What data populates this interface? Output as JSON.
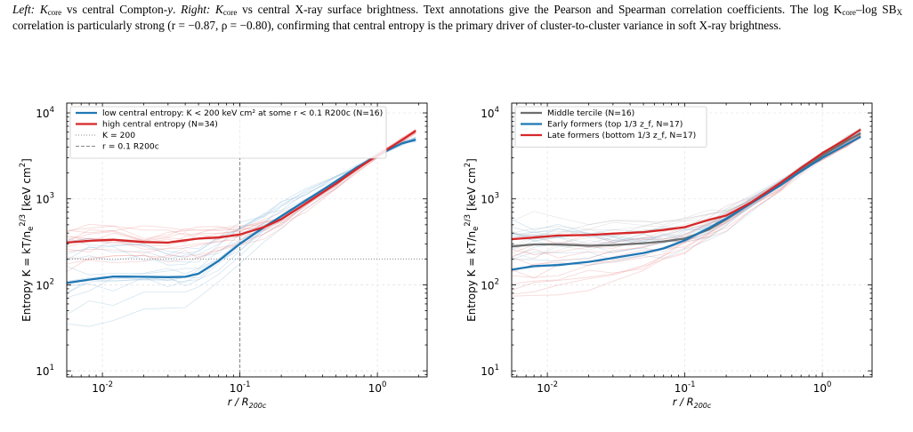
{
  "caption": {
    "line1_left": "Left:",
    "line1_a": " K",
    "line1_core1": "core",
    "line1_b": " vs central Compton-",
    "line1_y": "y",
    "line1_c": ". ",
    "line1_right": "Right:",
    "line1_d": " K",
    "line1_core2": "core",
    "line1_e": " vs central X-ray surface brightness. Text annotations give the Pearson and Spearman correlation coefficients. The",
    "line2_a": "log K",
    "line2_core": "core",
    "line2_b": "–log SB",
    "line2_x": "X",
    "line2_c": " correlation is particularly strong (r = −0.87, ρ = −0.80), confirming that central entropy is the primary driver of cluster-to-cluster variance",
    "line3": "in soft X-ray brightness."
  },
  "chart_data": [
    {
      "type": "line",
      "xscale": "log",
      "yscale": "log",
      "xlim": [
        0.0055,
        2.3
      ],
      "ylim": [
        8.5,
        13000
      ],
      "xlabel": "r / R200c",
      "ylabel": "Entropy K = kT/n_e^(2/3) [keV cm^2]",
      "xticks": [
        "10^-2",
        "10^-1",
        "10^0"
      ],
      "yticks": [
        "10^1",
        "10^2",
        "10^3",
        "10^4"
      ],
      "grid": true,
      "legend_position": "upper-left",
      "legend": [
        {
          "label": "low central entropy: K < 200 keV cm² at some r < 0.1 R200c (N=16)",
          "color": "#1f77b4",
          "style": "solid"
        },
        {
          "label": "high central entropy (N=34)",
          "color": "#d62728",
          "style": "solid"
        },
        {
          "label": "K = 200",
          "color": "#888888",
          "style": "dotted"
        },
        {
          "label": "r = 0.1 R200c",
          "color": "#888888",
          "style": "dashed"
        }
      ],
      "reference_lines": {
        "hline_y": 200,
        "vline_x": 0.1
      },
      "series": [
        {
          "name": "low central entropy: K < 200 keV cm² at some r < 0.1 R200c (N=16)",
          "color": "#1f77b4",
          "x": [
            0.0055,
            0.008,
            0.012,
            0.02,
            0.03,
            0.04,
            0.05,
            0.07,
            0.1,
            0.15,
            0.2,
            0.3,
            0.5,
            0.7,
            1.0,
            1.5,
            1.9
          ],
          "y": [
            105,
            115,
            125,
            124,
            123,
            124,
            135,
            190,
            300,
            470,
            630,
            950,
            1600,
            2300,
            3200,
            4400,
            4900
          ]
        },
        {
          "name": "high central entropy (N=34)",
          "color": "#d62728",
          "x": [
            0.0055,
            0.008,
            0.012,
            0.02,
            0.03,
            0.04,
            0.05,
            0.07,
            0.1,
            0.15,
            0.2,
            0.3,
            0.5,
            0.7,
            1.0,
            1.5,
            1.9
          ],
          "y": [
            310,
            325,
            335,
            315,
            310,
            330,
            345,
            355,
            385,
            470,
            580,
            880,
            1500,
            2200,
            3200,
            4800,
            6200
          ]
        }
      ]
    },
    {
      "type": "line",
      "xscale": "log",
      "yscale": "log",
      "xlim": [
        0.0055,
        2.3
      ],
      "ylim": [
        8.5,
        13000
      ],
      "xlabel": "r / R200c",
      "ylabel": "Entropy K = kT/n_e^(2/3) [keV cm^2]",
      "xticks": [
        "10^-2",
        "10^-1",
        "10^0"
      ],
      "yticks": [
        "10^1",
        "10^2",
        "10^3",
        "10^4"
      ],
      "grid": true,
      "legend_position": "upper-left",
      "legend": [
        {
          "label": "Middle tercile (N=16)",
          "color": "#6e6e6e",
          "style": "solid"
        },
        {
          "label": "Early formers (top 1/3 z_f, N=17)",
          "color": "#1f77b4",
          "style": "solid"
        },
        {
          "label": "Late formers (bottom 1/3 z_f, N=17)",
          "color": "#d62728",
          "style": "solid"
        }
      ],
      "series": [
        {
          "name": "Middle tercile (N=16)",
          "color": "#6e6e6e",
          "x": [
            0.0055,
            0.008,
            0.012,
            0.02,
            0.03,
            0.05,
            0.07,
            0.1,
            0.15,
            0.2,
            0.3,
            0.5,
            0.7,
            1.0,
            1.5,
            1.9
          ],
          "y": [
            280,
            295,
            295,
            285,
            290,
            305,
            320,
            345,
            440,
            580,
            880,
            1500,
            2200,
            3200,
            4700,
            5800
          ]
        },
        {
          "name": "Early formers (top 1/3 z_f, N=17)",
          "color": "#1f77b4",
          "x": [
            0.0055,
            0.008,
            0.012,
            0.02,
            0.03,
            0.05,
            0.07,
            0.1,
            0.15,
            0.2,
            0.3,
            0.5,
            0.7,
            1.0,
            1.5,
            1.9
          ],
          "y": [
            150,
            165,
            170,
            185,
            205,
            235,
            265,
            330,
            460,
            590,
            880,
            1450,
            2100,
            3000,
            4300,
            5300
          ]
        },
        {
          "name": "Late formers (bottom 1/3 z_f, N=17)",
          "color": "#d62728",
          "x": [
            0.0055,
            0.008,
            0.012,
            0.02,
            0.03,
            0.05,
            0.07,
            0.1,
            0.15,
            0.2,
            0.3,
            0.5,
            0.7,
            1.0,
            1.5,
            1.9
          ],
          "y": [
            340,
            355,
            375,
            380,
            395,
            410,
            435,
            470,
            570,
            640,
            900,
            1550,
            2300,
            3400,
            5000,
            6400
          ]
        }
      ]
    }
  ]
}
